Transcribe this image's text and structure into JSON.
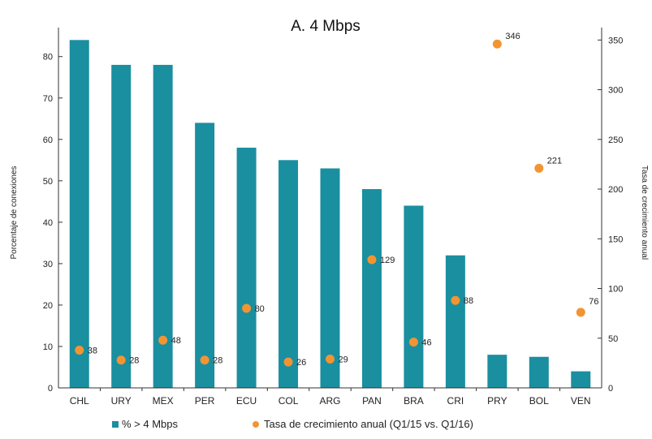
{
  "chart_data": {
    "type": "bar",
    "title": "A. 4 Mbps",
    "categories": [
      "CHL",
      "URY",
      "MEX",
      "PER",
      "ECU",
      "COL",
      "ARG",
      "PAN",
      "BRA",
      "CRI",
      "PRY",
      "BOL",
      "VEN"
    ],
    "series": [
      {
        "name": "% > 4 Mbps",
        "type": "bar",
        "axis": "left",
        "color": "#1a8fa0",
        "values": [
          84,
          78,
          78,
          64,
          58,
          55,
          53,
          48,
          44,
          32,
          8,
          7.5,
          4
        ]
      },
      {
        "name": "Tasa de crecimiento anual (Q1/15 vs. Q1/16)",
        "type": "scatter",
        "axis": "right",
        "color": "#f39433",
        "values": [
          38,
          28,
          48,
          28,
          80,
          26,
          29,
          129,
          46,
          88,
          346,
          221,
          76
        ],
        "labels": [
          "38",
          "28",
          "48",
          "28",
          "80",
          "26",
          "29",
          "129",
          "46",
          "88",
          "346",
          "221",
          "76"
        ]
      }
    ],
    "ylabel": "Porcentaje de conexiones",
    "y2label": "Tasa de crecimiento anual",
    "ylim": [
      0,
      87
    ],
    "y2lim": [
      0,
      362.5
    ],
    "yticks": [
      0,
      10,
      20,
      30,
      40,
      50,
      60,
      70,
      80
    ],
    "y2ticks": [
      0,
      50,
      100,
      150,
      200,
      250,
      300,
      350
    ],
    "legend_position": "bottom"
  }
}
